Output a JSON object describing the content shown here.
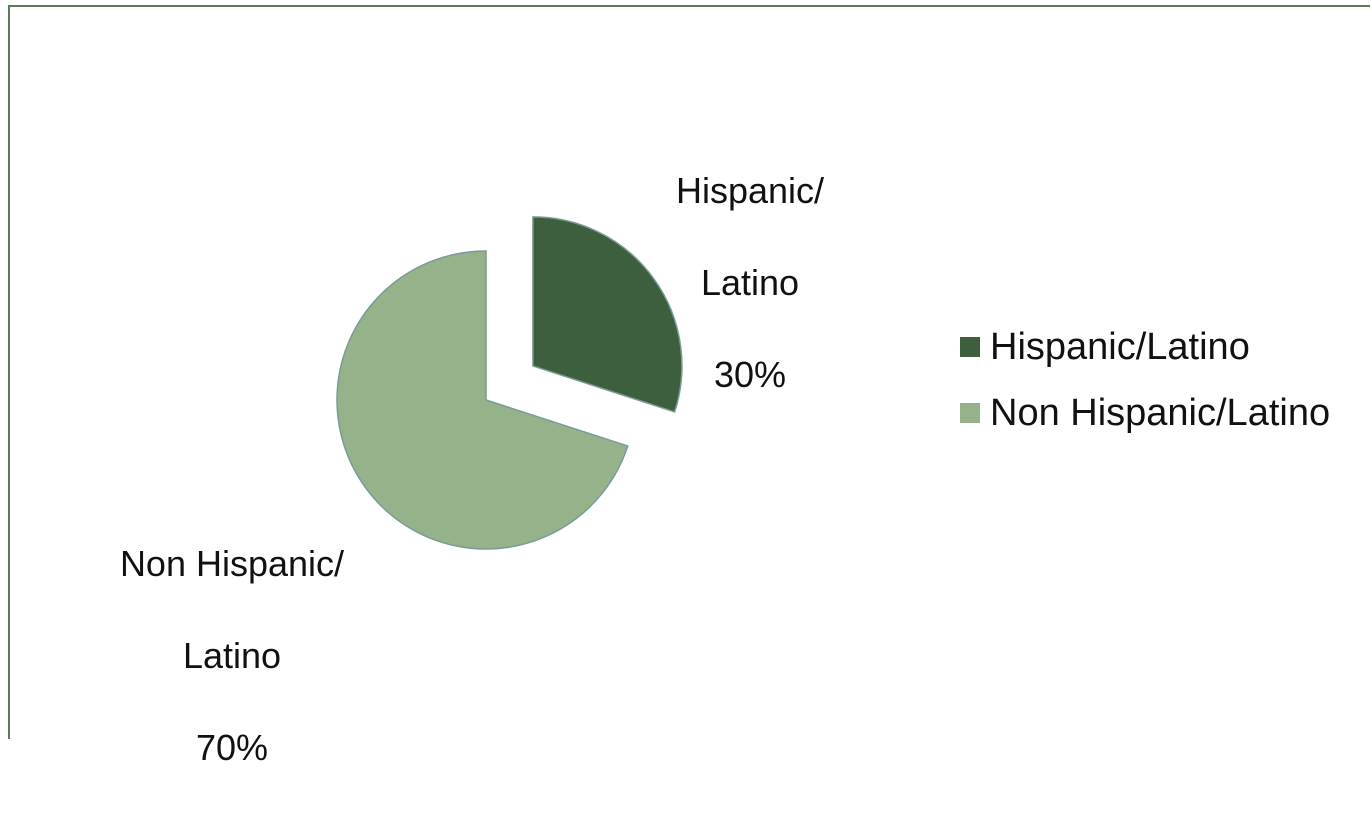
{
  "chart_data": {
    "type": "pie",
    "exploded": true,
    "slices": [
      {
        "name": "Hispanic/Latino",
        "value": 30,
        "label_lines": [
          "Hispanic/",
          "Latino",
          "30%"
        ],
        "color": "#3e5f3e"
      },
      {
        "name": "Non Hispanic/Latino",
        "value": 70,
        "label_lines": [
          "Non Hispanic/",
          "Latino",
          "70%"
        ],
        "color": "#95b28b"
      }
    ],
    "legend": {
      "position": "right",
      "items": [
        "Hispanic/Latino",
        "Non Hispanic/Latino"
      ]
    },
    "title": ""
  },
  "colors": {
    "frame_border": "#5a7a5a",
    "slice_stroke": "#7c9a97"
  }
}
